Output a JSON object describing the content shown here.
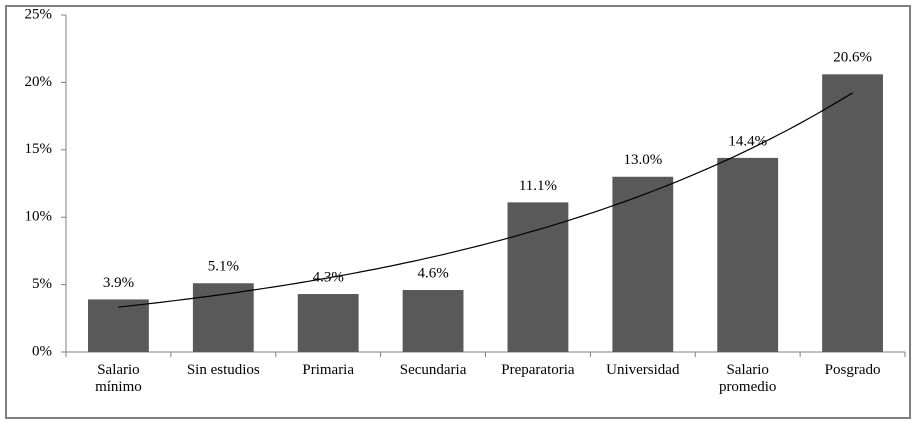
{
  "chart_data": {
    "type": "bar",
    "categories": [
      "Salario mínimo",
      "Sin estudios",
      "Primaria",
      "Secundaria",
      "Preparatoria",
      "Universidad",
      "Salario promedio",
      "Posgrado"
    ],
    "values": [
      3.9,
      5.1,
      4.3,
      4.6,
      11.1,
      13.0,
      14.4,
      20.6
    ],
    "value_labels": [
      "3.9%",
      "5.1%",
      "4.3%",
      "4.6%",
      "11.1%",
      "13.0%",
      "14.4%",
      "20.6%"
    ],
    "color": "#595959",
    "trendline": "exponential",
    "ylim": [
      0,
      25
    ],
    "yticks": [
      {
        "value": 0,
        "label": "0%"
      },
      {
        "value": 5,
        "label": "5%"
      },
      {
        "value": 10,
        "label": "10%"
      },
      {
        "value": 15,
        "label": "15%"
      },
      {
        "value": 20,
        "label": "20%"
      },
      {
        "value": 25,
        "label": "25%"
      }
    ]
  }
}
